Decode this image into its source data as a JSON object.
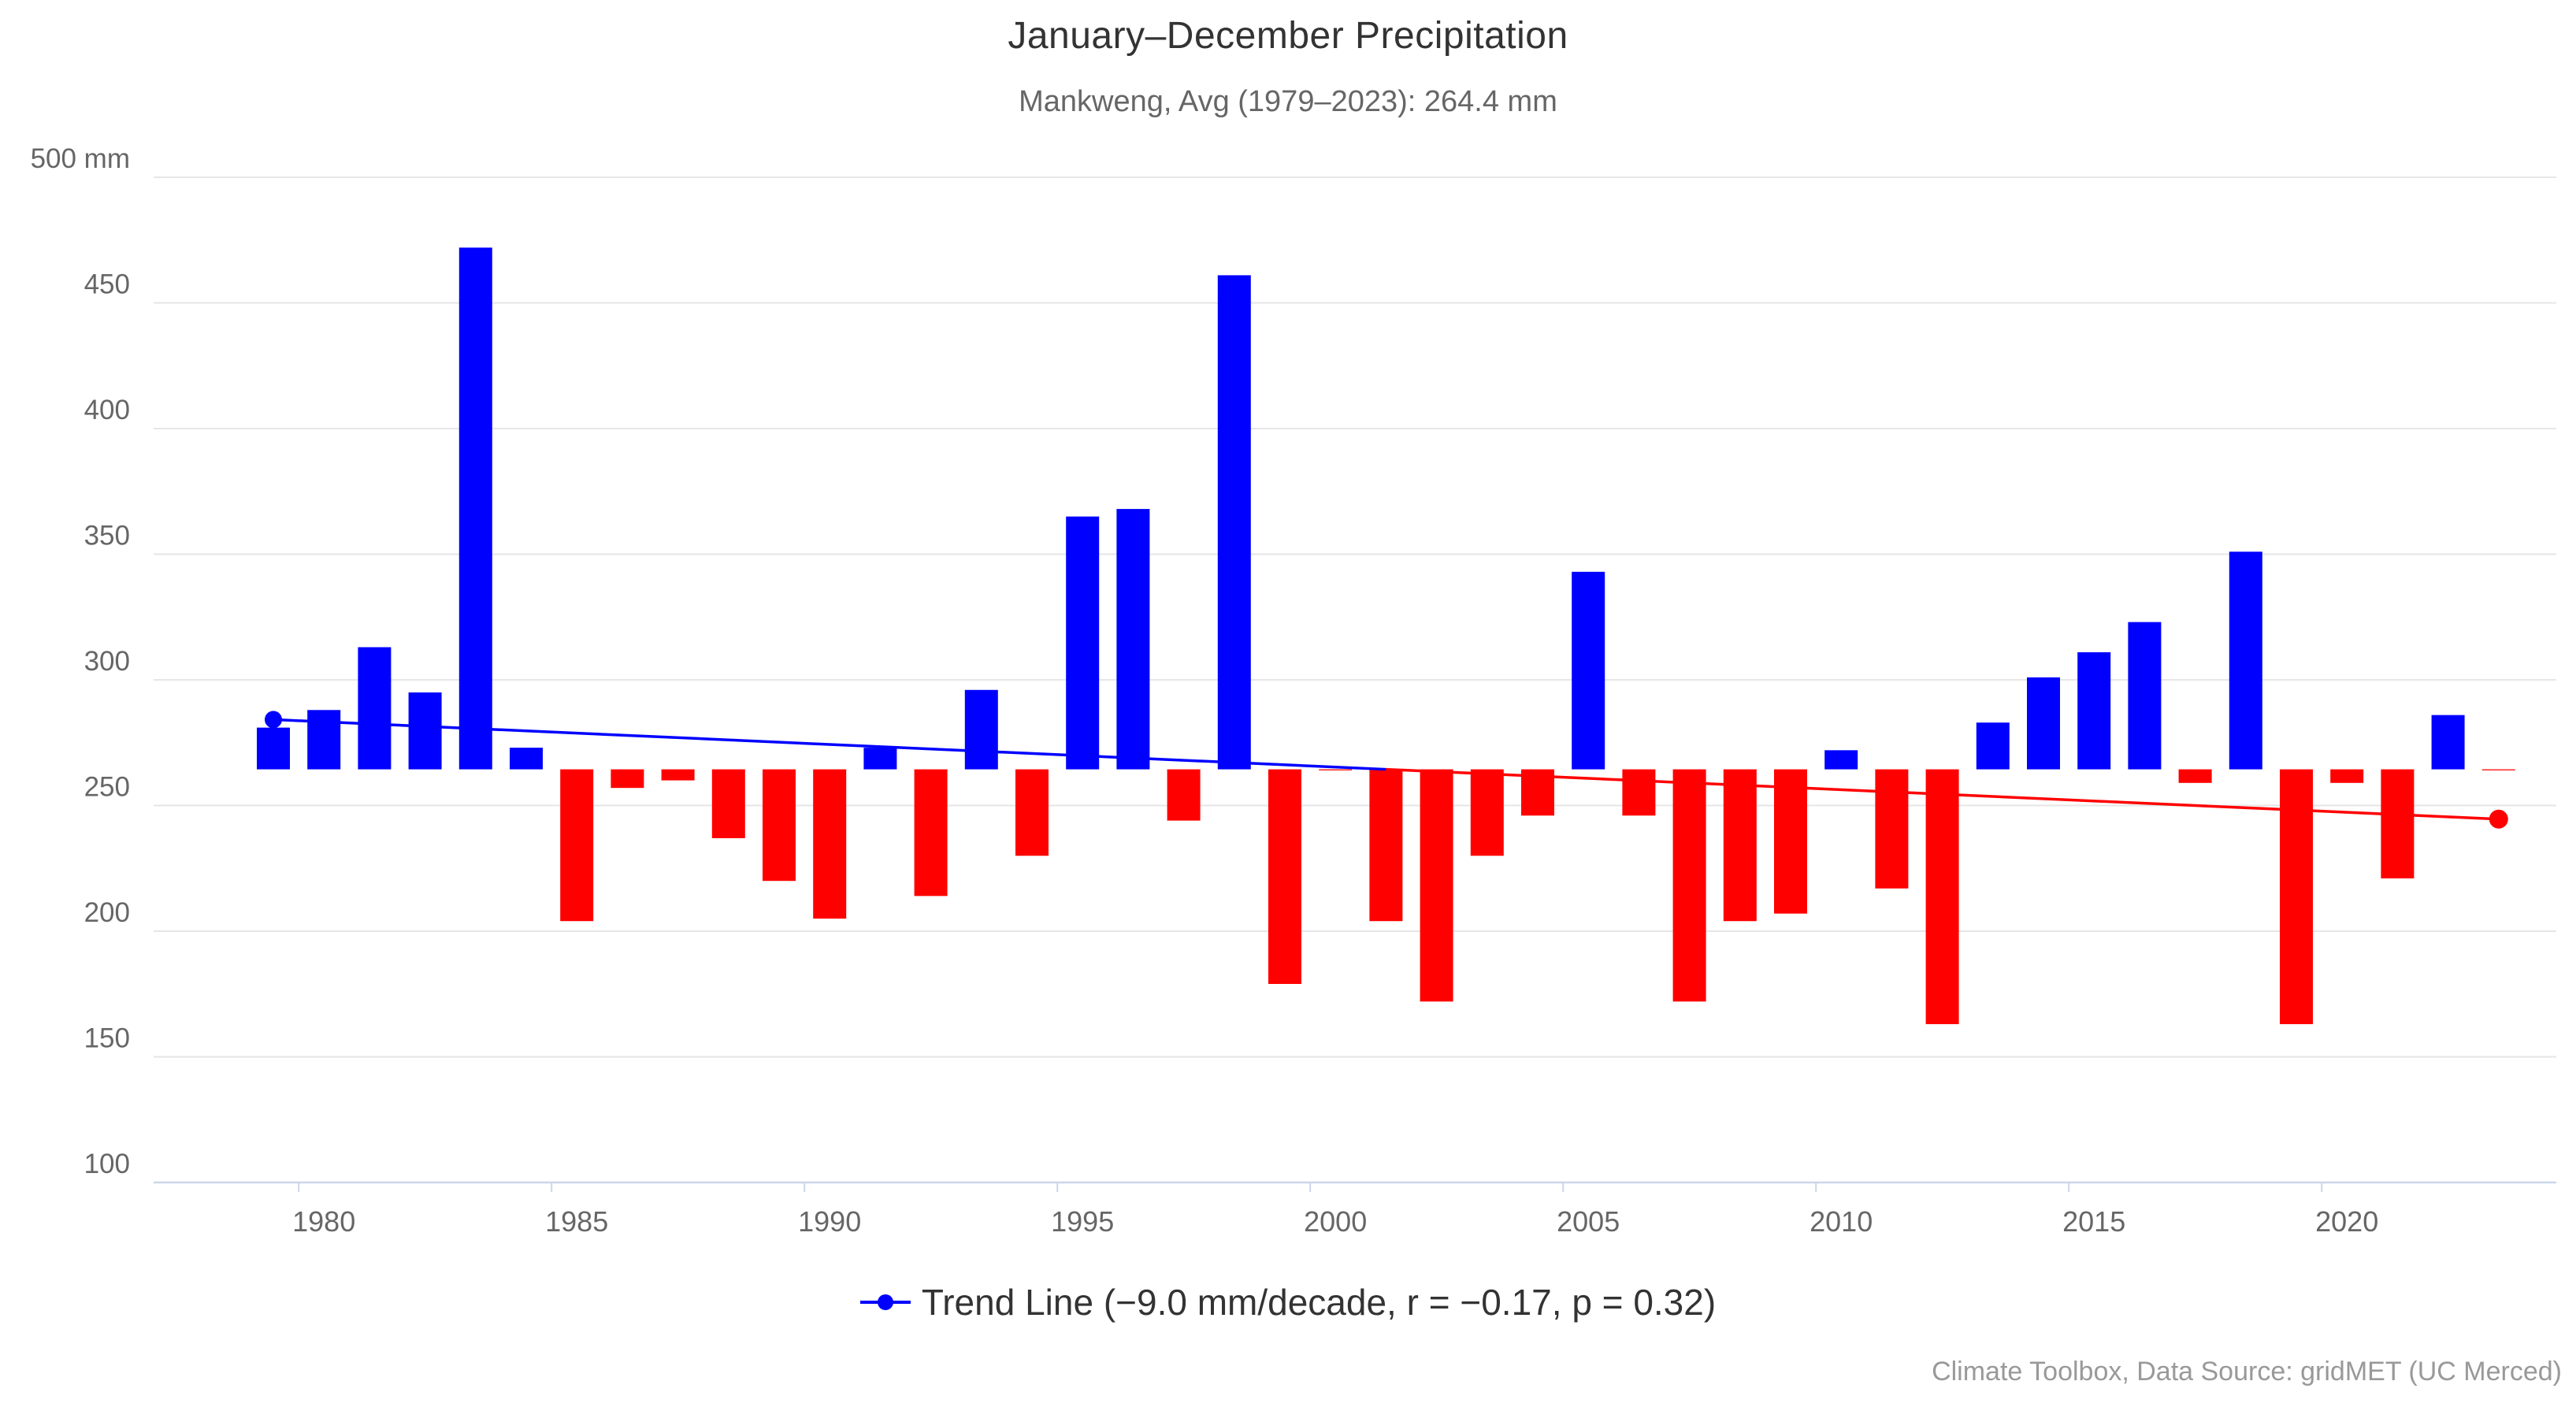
{
  "title": "January–December Precipitation",
  "subtitle": "Mankweng, Avg (1979–2023): 264.4 mm",
  "legend": {
    "label": "Trend Line (−9.0 mm/decade, r = −0.17, p = 0.32)",
    "marker_color": "#0000ff"
  },
  "credits": "Climate Toolbox, Data Source: gridMET (UC Merced)",
  "chart_data": {
    "type": "bar",
    "title": "January–December Precipitation",
    "subtitle": "Mankweng, Avg (1979–2023): 264.4 mm",
    "xlabel": "",
    "ylabel": "mm",
    "y_unit_label": "500 mm",
    "ylim": [
      100,
      500
    ],
    "ytick_step": 50,
    "yticks": [
      100,
      150,
      200,
      250,
      300,
      350,
      400,
      450,
      500
    ],
    "xticks": [
      1980,
      1985,
      1990,
      1995,
      2000,
      2005,
      2010,
      2015,
      2020
    ],
    "average": 264.4,
    "baseline": 264.4,
    "grid_on": true,
    "legend_position": "bottom",
    "x": [
      1979,
      1980,
      1981,
      1982,
      1983,
      1984,
      1985,
      1986,
      1987,
      1988,
      1989,
      1990,
      1991,
      1992,
      1993,
      1994,
      1995,
      1996,
      1997,
      1998,
      1999,
      2000,
      2001,
      2002,
      2003,
      2004,
      2005,
      2006,
      2007,
      2008,
      2009,
      2010,
      2011,
      2012,
      2013,
      2014,
      2015,
      2016,
      2017,
      2018,
      2019,
      2020,
      2021,
      2022,
      2023
    ],
    "values": [
      281,
      288,
      313,
      295,
      472,
      273,
      204,
      257,
      260,
      237,
      220,
      205,
      273,
      214,
      296,
      230,
      365,
      368,
      244,
      461,
      179,
      264,
      204,
      172,
      230,
      246,
      343,
      246,
      172,
      204,
      207,
      272,
      217,
      163,
      283,
      301,
      311,
      323,
      259,
      351,
      163,
      259,
      221,
      286,
      264
    ],
    "colors": {
      "above": "#0000ff",
      "below": "#ff0000"
    },
    "trend": {
      "label": "Trend Line (−9.0 mm/decade, r = −0.17, p = 0.32)",
      "slope_mm_per_decade": -9.0,
      "r": -0.17,
      "p": 0.32,
      "start_year": 1979,
      "start_value": 284.2,
      "end_year": 2023,
      "end_value": 244.6,
      "above_color": "#0000ff",
      "below_color": "#ff0000"
    },
    "grid_color": "#e6e6e6",
    "axis_color": "#ccd6eb",
    "tick_label_color": "#666666"
  }
}
